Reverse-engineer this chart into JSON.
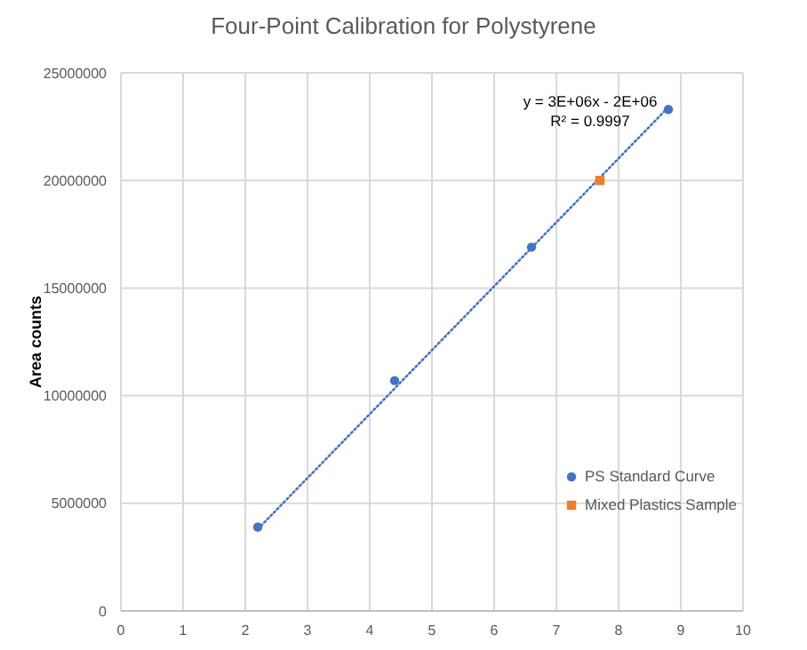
{
  "chart_data": {
    "type": "scatter",
    "title": "Four-Point Calibration for Polystyrene",
    "ylabel": "Area counts",
    "annotations": [
      "y = 3E+06x - 2E+06",
      "R² = 0.9997"
    ],
    "series": [
      {
        "name": "PS Standard Curve",
        "color": "#4472c4",
        "marker": "circle",
        "x": [
          2.2,
          4.4,
          6.6,
          8.8
        ],
        "values": [
          3900000,
          10700000,
          16900000,
          23300000
        ]
      },
      {
        "name": "Mixed Plastics Sample",
        "color": "#ed7d31",
        "marker": "square",
        "x": [
          7.7
        ],
        "values": [
          20000000
        ]
      },
      {
        "type": "line",
        "color": "#4472c4",
        "line_style": "dotted",
        "marker": "none",
        "x": [
          2.2,
          8.8
        ],
        "values": [
          3800000,
          23400000
        ]
      }
    ],
    "xlim": [
      0,
      10
    ],
    "xticks": [
      0,
      1,
      2,
      3,
      4,
      5,
      6,
      7,
      8,
      9,
      10
    ],
    "ylim": [
      0,
      25000000
    ],
    "yticks": [
      0,
      5000000,
      10000000,
      15000000,
      20000000,
      25000000
    ],
    "grid": true,
    "legend": "bottom right"
  }
}
